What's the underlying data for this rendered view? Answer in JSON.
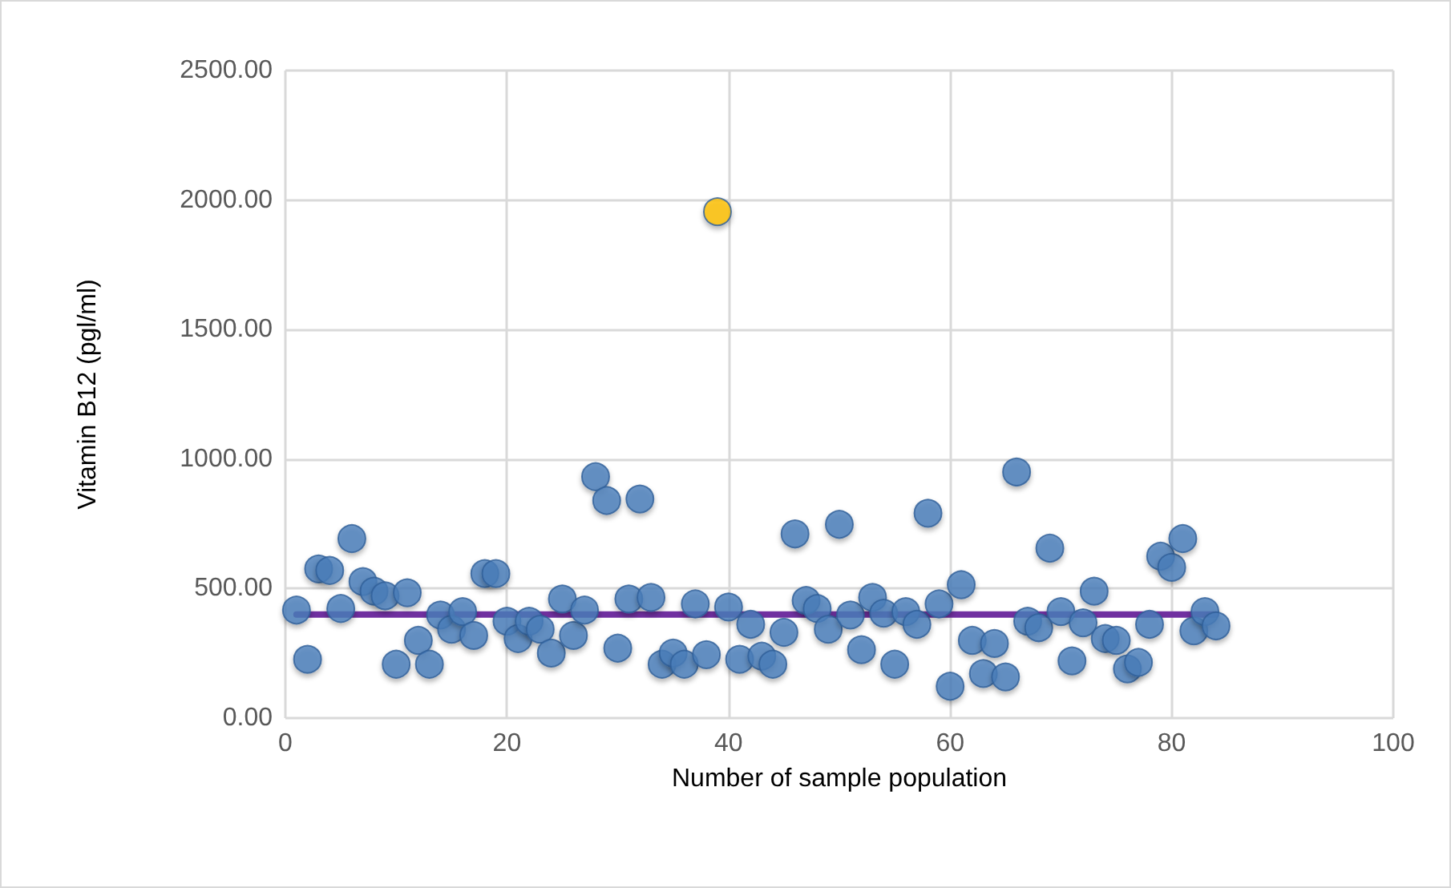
{
  "chart_data": {
    "type": "scatter",
    "xlabel": "Number of sample population",
    "ylabel": "Vitamin B12 (pgl/ml)",
    "xlim": [
      0,
      100
    ],
    "xticks": [
      0,
      20,
      40,
      60,
      80,
      100
    ],
    "ylim": [
      0,
      2500
    ],
    "yticks": [
      {
        "value": 0,
        "label": "0.00"
      },
      {
        "value": 500,
        "label": "500.00"
      },
      {
        "value": 1000,
        "label": "1000.00"
      },
      {
        "value": 1500,
        "label": "1500.00"
      },
      {
        "value": 2000,
        "label": "2000.00"
      },
      {
        "value": 2500,
        "label": "2500.00"
      }
    ],
    "grid": true,
    "marker": "circle",
    "series": [
      {
        "type": "line",
        "color": "#7030a0",
        "x": [
          1,
          84
        ],
        "values": [
          400,
          400
        ],
        "marker": "none"
      },
      {
        "color": "#4a7ebb",
        "x": [
          1,
          2,
          3,
          4,
          5,
          6,
          7,
          8,
          9,
          10,
          11,
          12,
          13,
          14,
          15,
          16,
          17,
          18,
          19,
          20,
          21,
          22,
          23,
          24,
          25,
          26,
          27,
          28,
          29,
          30,
          31,
          32,
          33,
          34,
          35,
          36,
          37,
          38,
          40,
          41,
          42,
          43,
          44,
          45,
          46,
          47,
          48,
          49,
          50,
          51,
          52,
          53,
          54,
          55,
          56,
          57,
          58,
          59,
          60,
          61,
          62,
          63,
          64,
          65,
          66,
          67,
          68,
          69,
          70,
          71,
          72,
          73,
          74,
          75,
          76,
          77,
          78,
          79,
          80,
          81,
          82,
          83,
          84
        ],
        "values": [
          417,
          227,
          576,
          570,
          423,
          693,
          527,
          490,
          472,
          208,
          484,
          300,
          208,
          398,
          343,
          411,
          319,
          558,
          558,
          374,
          307,
          374,
          343,
          251,
          460,
          319,
          417,
          932,
          840,
          270,
          460,
          846,
          466,
          208,
          251,
          208,
          441,
          245,
          429,
          227,
          362,
          239,
          208,
          331,
          711,
          454,
          423,
          343,
          748,
          398,
          264,
          466,
          405,
          208,
          411,
          362,
          791,
          441,
          123,
          515,
          300,
          172,
          288,
          159,
          950,
          374,
          349,
          656,
          411,
          221,
          368,
          490,
          307,
          300,
          190,
          215,
          362,
          625,
          582,
          693,
          337,
          411,
          356
        ]
      },
      {
        "color": "#ffc000",
        "x": [
          39
        ],
        "values": [
          1955
        ]
      }
    ]
  }
}
